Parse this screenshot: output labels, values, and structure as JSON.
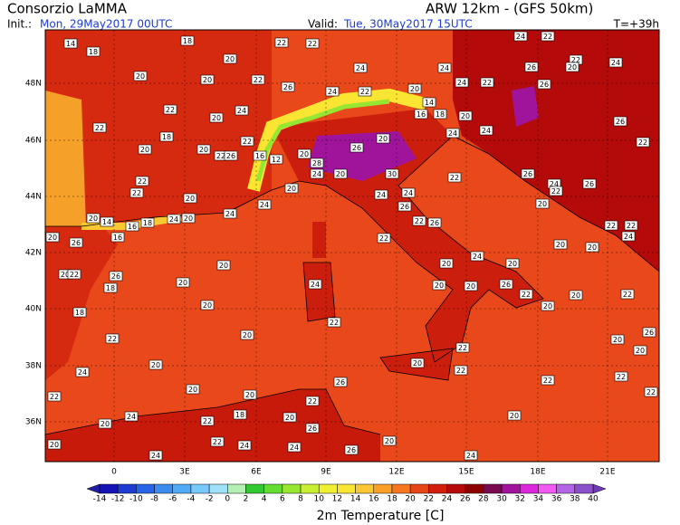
{
  "header": {
    "title": "Consorzio LaMMA",
    "model": "ARW 12km - (GFS 50km)",
    "init_label": "Init.:",
    "init_time": "Mon, 29May2017 00UTC",
    "valid_label": "Valid:",
    "valid_time": "Tue, 30May2017 15UTC",
    "lead": "T=+39h"
  },
  "map": {
    "lat_labels": [
      "48N",
      "46N",
      "44N",
      "42N",
      "40N",
      "38N",
      "36N"
    ],
    "lon_labels": [
      "0",
      "3E",
      "6E",
      "9E",
      "12E",
      "15E",
      "18E",
      "21E"
    ],
    "labels": [
      14,
      18,
      18,
      22,
      20,
      24,
      22,
      24,
      22,
      22,
      24,
      20,
      26,
      24,
      20,
      22,
      24,
      26,
      20,
      20,
      22,
      26,
      24,
      22,
      14,
      16,
      18,
      20,
      22,
      20,
      24,
      22,
      18,
      20,
      22,
      26,
      22,
      20,
      22,
      26,
      16,
      12,
      20,
      24,
      24,
      28,
      26,
      20,
      24,
      20,
      30,
      26,
      22,
      22,
      20,
      20,
      24,
      24,
      22,
      24,
      26,
      22,
      20,
      24,
      26,
      20,
      14,
      16,
      18,
      24,
      20,
      24,
      22,
      26,
      22,
      22,
      24,
      20,
      26,
      16,
      22,
      20,
      20,
      24,
      20,
      20,
      22,
      26,
      20,
      20,
      24,
      20,
      20,
      20,
      26,
      22,
      18,
      20,
      22,
      20,
      18,
      20,
      22,
      20,
      22,
      20,
      26,
      22,
      20,
      20,
      24,
      20,
      22,
      22,
      22,
      20,
      20,
      26,
      22,
      22,
      22,
      24,
      18,
      20,
      20,
      22,
      26,
      20,
      22,
      20,
      24,
      24,
      26,
      20,
      24,
      24
    ]
  },
  "colorbar": {
    "title": "2m Temperature [C]",
    "ticks": [
      -14,
      -12,
      -10,
      -8,
      -6,
      -4,
      -2,
      0,
      2,
      4,
      6,
      8,
      10,
      12,
      14,
      16,
      18,
      20,
      22,
      24,
      26,
      28,
      30,
      32,
      34,
      36,
      38,
      40
    ],
    "colors": [
      "#1414b4",
      "#1e3cd2",
      "#2864e6",
      "#3c8cf0",
      "#50aaf5",
      "#78c8fa",
      "#a0e1fa",
      "#b4f0b4",
      "#32c832",
      "#64dc32",
      "#96e632",
      "#c8f032",
      "#f0f032",
      "#fae632",
      "#fac832",
      "#faa028",
      "#f57820",
      "#e64616",
      "#d21e0a",
      "#b40a0a",
      "#8c0000",
      "#780a50",
      "#a0149b",
      "#dc28dc",
      "#f05af0",
      "#b464e6",
      "#8c50c8"
    ],
    "under_color": "#2020a0",
    "over_color": "#6e3cb4"
  }
}
